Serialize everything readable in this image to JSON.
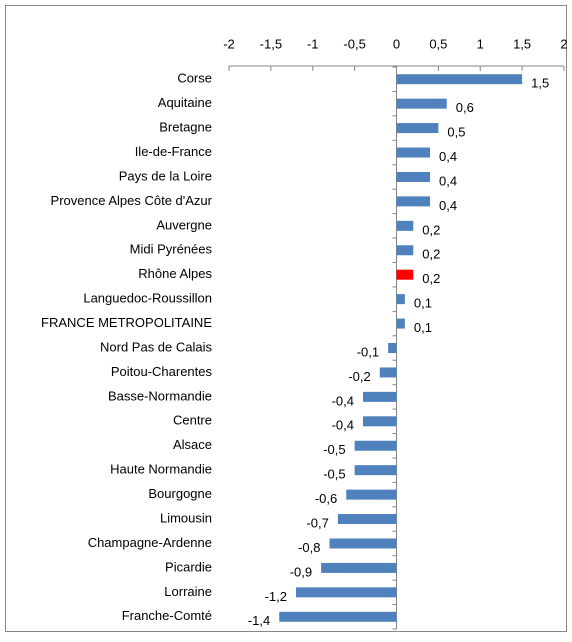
{
  "chart_data": {
    "type": "bar",
    "orientation": "horizontal",
    "categories": [
      "Corse",
      "Aquitaine",
      "Bretagne",
      "Ile-de-France",
      "Pays de la Loire",
      "Provence Alpes Côte d'Azur",
      "Auvergne",
      "Midi Pyrénées",
      "Rhône Alpes",
      "Languedoc-Roussillon",
      "FRANCE METROPOLITAINE",
      "Nord Pas de Calais",
      "Poitou-Charentes",
      "Basse-Normandie",
      "Centre",
      "Alsace",
      "Haute Normandie",
      "Bourgogne",
      "Limousin",
      "Champagne-Ardenne",
      "Picardie",
      "Lorraine",
      "Franche-Comté"
    ],
    "values": [
      1.5,
      0.6,
      0.5,
      0.4,
      0.4,
      0.4,
      0.2,
      0.2,
      0.2,
      0.1,
      0.1,
      -0.1,
      -0.2,
      -0.4,
      -0.4,
      -0.5,
      -0.5,
      -0.6,
      -0.7,
      -0.8,
      -0.9,
      -1.2,
      -1.4
    ],
    "value_labels": [
      "1,5",
      "0,6",
      "0,5",
      "0,4",
      "0,4",
      "0,4",
      "0,2",
      "0,2",
      "0,2",
      "0,1",
      "0,1",
      "-0,1",
      "-0,2",
      "-0,4",
      "-0,4",
      "-0,5",
      "-0,5",
      "-0,6",
      "-0,7",
      "-0,8",
      "-0,9",
      "-1,2",
      "-1,4"
    ],
    "colors": [
      "#4f81bd",
      "#4f81bd",
      "#4f81bd",
      "#4f81bd",
      "#4f81bd",
      "#4f81bd",
      "#4f81bd",
      "#4f81bd",
      "#ff0000",
      "#4f81bd",
      "#4f81bd",
      "#4f81bd",
      "#4f81bd",
      "#4f81bd",
      "#4f81bd",
      "#4f81bd",
      "#4f81bd",
      "#4f81bd",
      "#4f81bd",
      "#4f81bd",
      "#4f81bd",
      "#4f81bd",
      "#4f81bd"
    ],
    "xlim": [
      -2,
      2
    ],
    "xticks": [
      -2,
      {
        "value": -1.5,
        "label": "-1,5"
      },
      -1,
      {
        "value": -0.5,
        "label": "-0,5"
      },
      0,
      {
        "value": 0.5,
        "label": "0,5"
      },
      1,
      {
        "value": 1.5,
        "label": "1,5"
      },
      2
    ],
    "grid": false
  }
}
